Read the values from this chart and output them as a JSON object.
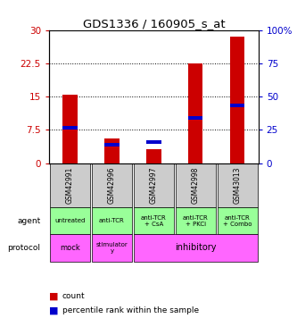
{
  "title": "GDS1336 / 160905_s_at",
  "samples": [
    "GSM42991",
    "GSM42996",
    "GSM42997",
    "GSM42998",
    "GSM43013"
  ],
  "count_values": [
    15.5,
    5.5,
    3.2,
    22.5,
    28.5
  ],
  "percentile_values_scaled": [
    8.0,
    4.2,
    4.8,
    10.2,
    13.0
  ],
  "left_yticks": [
    0,
    7.5,
    15,
    22.5,
    30
  ],
  "left_yticklabels": [
    "0",
    "7.5",
    "15",
    "22.5",
    "30"
  ],
  "right_yticks": [
    0,
    25,
    50,
    75,
    100
  ],
  "right_yticklabels": [
    "0",
    "25",
    "50",
    "75",
    "100%"
  ],
  "ylim_left": [
    0,
    30
  ],
  "ylim_right": [
    0,
    100
  ],
  "bar_color_count": "#cc0000",
  "bar_color_pct": "#0000cc",
  "agent_labels": [
    "untreated",
    "anti-TCR",
    "anti-TCR\n+ CsA",
    "anti-TCR\n+ PKCi",
    "anti-TCR\n+ Combo"
  ],
  "gsm_bg_color": "#cccccc",
  "agent_color": "#99ff99",
  "protocol_color": "#ff66ff",
  "agent_row_label": "agent",
  "protocol_row_label": "protocol",
  "legend_count_label": "count",
  "legend_pct_label": "percentile rank within the sample",
  "ylabel_left_color": "#cc0000",
  "ylabel_right_color": "#0000cc"
}
